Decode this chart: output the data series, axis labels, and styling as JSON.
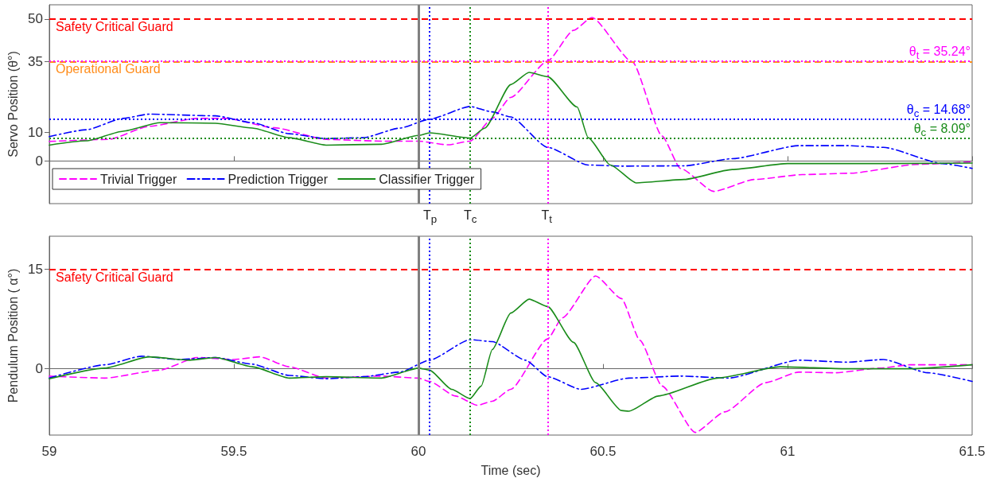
{
  "chart_data": [
    {
      "type": "line",
      "ylabel": "Servo Position (θ°)",
      "xlim": [
        59,
        61.5
      ],
      "xticks": [
        {
          "value": 59,
          "label": null
        },
        {
          "value": 59.5,
          "label": null
        },
        {
          "value": 60,
          "label": null
        },
        {
          "value": 60.5,
          "label": null
        },
        {
          "value": 61,
          "label": null
        },
        {
          "value": 61.5,
          "label": null
        }
      ],
      "ylim": [
        -15,
        55
      ],
      "yticks": [
        0,
        10,
        35,
        50
      ],
      "tick_labels": "y",
      "grid": false,
      "legend": "bottom left",
      "marker": "none",
      "series": [
        {
          "name": "Trivial Trigger",
          "color": "#ff00ff",
          "line_style": "dashed",
          "x": [
            59,
            59.16,
            59.27,
            59.4,
            59.48,
            59.61,
            59.75,
            59.9,
            60,
            60.08,
            60.14,
            60.2,
            60.25,
            60.35,
            60.42,
            60.47,
            60.58,
            60.66,
            60.71,
            60.8,
            60.91,
            61.04,
            61.17,
            61.35,
            61.5
          ],
          "values": [
            6.9,
            7.6,
            12.2,
            15,
            15,
            11.7,
            7.6,
            7,
            7,
            5.7,
            7,
            15,
            22.4,
            35.2,
            46,
            50.5,
            34.8,
            8.8,
            -2.6,
            -10.7,
            -6.5,
            -4.8,
            -4.3,
            -1.2,
            -0.3
          ]
        },
        {
          "name": "Prediction Trigger",
          "color": "#0000ff",
          "line_style": "dashdot",
          "x": [
            59,
            59.1,
            59.2,
            59.27,
            59.45,
            59.55,
            59.65,
            59.75,
            59.85,
            59.95,
            60.03,
            60.14,
            60.2,
            60.25,
            60.35,
            60.46,
            60.55,
            60.72,
            60.85,
            61.03,
            61.16,
            61.26,
            61.42,
            61.5
          ],
          "values": [
            8.6,
            11,
            15,
            16.5,
            15.9,
            13.5,
            9.6,
            7.9,
            8.2,
            11.6,
            14.7,
            19.2,
            17.3,
            15.5,
            4.8,
            -1.4,
            -1.8,
            -1.7,
            0.8,
            5.4,
            5.4,
            4.8,
            -0.9,
            -2.6
          ]
        },
        {
          "name": "Classifier Trigger",
          "color": "#1a8c1a",
          "line_style": "solid",
          "x": [
            59,
            59.1,
            59.2,
            59.3,
            59.45,
            59.55,
            59.65,
            59.75,
            59.9,
            60,
            60.03,
            60.14,
            60.18,
            60.25,
            60.3,
            60.35,
            60.43,
            60.46,
            60.52,
            60.59,
            60.72,
            60.85,
            61,
            61.25,
            61.5
          ],
          "values": [
            5.6,
            7.1,
            10.5,
            13.5,
            13.3,
            11.6,
            8.2,
            5.6,
            5.9,
            9,
            9.9,
            8.1,
            11.6,
            26.9,
            31.2,
            29.7,
            19,
            8.2,
            -1.4,
            -7.7,
            -6.5,
            -3,
            -0.9,
            -0.9,
            -0.7
          ]
        }
      ],
      "ref_lines": [
        {
          "axis": "y",
          "value": 50,
          "label": "Safety Critical Guard",
          "color": "#ff0000",
          "line_style": "dashed"
        },
        {
          "axis": "y",
          "value": 35,
          "label": "Operational Guard",
          "color": "#ff8c1a",
          "line_style": "dashed"
        },
        {
          "axis": "y",
          "value": 35.24,
          "label": "θ$_{t}$ = 35.24°",
          "color": "#ff00ff",
          "line_style": "dotted"
        },
        {
          "axis": "y",
          "value": 14.68,
          "label": "θ$_{c}$ = 14.68°",
          "color": "#0000ff",
          "line_style": "dotted"
        },
        {
          "axis": "y",
          "value": 8.09,
          "label": "θ$_{c}$ = 8.09°",
          "color": "#1a8c1a",
          "line_style": "dotted"
        },
        {
          "axis": "x",
          "value": 60,
          "color": "#808080",
          "line_style": "solid"
        },
        {
          "axis": "x",
          "value": 60.03,
          "label": "T$_{p}$",
          "color": "#0000ff",
          "line_style": "dotted"
        },
        {
          "axis": "x",
          "value": 60.14,
          "label": "T$_{c}$",
          "color": "#1a8c1a",
          "line_style": "dotted"
        },
        {
          "axis": "x",
          "value": 60.35,
          "label": "T$_{t}$",
          "color": "#ff00ff",
          "line_style": "dotted"
        }
      ]
    },
    {
      "type": "line",
      "xlabel": "Time (sec)",
      "ylabel": "Pendulum Position ( α°)",
      "xlim": [
        59,
        61.5
      ],
      "xticks": [
        59,
        59.5,
        60,
        60.5,
        61,
        61.5
      ],
      "ylim": [
        -10,
        20
      ],
      "yticks": [
        0,
        15
      ],
      "grid": false,
      "marker": "none",
      "series": [
        {
          "color": "#ff00ff",
          "line_style": "dashed",
          "x": [
            59,
            59.15,
            59.3,
            59.4,
            59.5,
            59.57,
            59.65,
            59.75,
            59.9,
            60,
            60.03,
            60.1,
            60.16,
            60.2,
            60.25,
            60.35,
            60.39,
            60.48,
            60.55,
            60.6,
            60.66,
            60.75,
            60.83,
            60.94,
            61.03,
            61.13,
            61.25,
            61.33,
            61.5
          ],
          "values": [
            -1.1,
            -1.4,
            -0.2,
            1.7,
            1.4,
            1.8,
            0.3,
            -1.4,
            -1.1,
            -1.4,
            -1.9,
            -4.1,
            -5.5,
            -4.9,
            -3.1,
            4.5,
            7.7,
            14,
            10.6,
            4.3,
            -2.6,
            -9.6,
            -6.5,
            -2.1,
            -0.5,
            -0.6,
            0.1,
            0.6,
            0.6
          ]
        },
        {
          "color": "#0000ff",
          "line_style": "dashdot",
          "x": [
            59,
            59.15,
            59.25,
            59.35,
            59.45,
            59.55,
            59.65,
            59.75,
            59.85,
            59.95,
            60.03,
            60.14,
            60.2,
            60.29,
            60.35,
            60.44,
            60.57,
            60.71,
            60.84,
            61.03,
            61.16,
            61.26,
            61.38,
            61.5
          ],
          "values": [
            -1.4,
            0.6,
            1.9,
            1.4,
            1.7,
            0.7,
            -1,
            -1.5,
            -1.2,
            -0.5,
            1.3,
            4.4,
            4.1,
            1.3,
            -1.2,
            -3.1,
            -1.4,
            -1.1,
            -1.4,
            1.3,
            1,
            1.4,
            -0.6,
            -1.9
          ]
        },
        {
          "color": "#1a8c1a",
          "line_style": "solid",
          "x": [
            59,
            59.15,
            59.27,
            59.38,
            59.45,
            59.55,
            59.65,
            59.75,
            59.9,
            60,
            60.03,
            60.09,
            60.14,
            60.17,
            60.2,
            60.25,
            60.3,
            60.35,
            60.42,
            60.48,
            60.55,
            60.57,
            60.65,
            60.81,
            60.98,
            61.16,
            61.33,
            61.5
          ],
          "values": [
            -1.5,
            0.1,
            1.8,
            1.3,
            1.7,
            0.3,
            -1.4,
            -1.2,
            -1.4,
            0.1,
            -0.2,
            -3.1,
            -4.5,
            -2.6,
            2.9,
            8.4,
            10.5,
            9.4,
            4,
            -2.1,
            -6.3,
            -6.4,
            -4.1,
            -1.4,
            0.3,
            0,
            0,
            0.6
          ]
        }
      ],
      "ref_lines": [
        {
          "axis": "y",
          "value": 15,
          "label": "Safety Critical Guard",
          "color": "#ff0000",
          "line_style": "dashed"
        },
        {
          "axis": "x",
          "value": 60,
          "color": "#808080",
          "line_style": "solid"
        },
        {
          "axis": "x",
          "value": 60.03,
          "color": "#0000ff",
          "line_style": "dotted"
        },
        {
          "axis": "x",
          "value": 60.14,
          "color": "#1a8c1a",
          "line_style": "dotted"
        },
        {
          "axis": "x",
          "value": 60.35,
          "color": "#ff00ff",
          "line_style": "dotted"
        }
      ]
    }
  ]
}
